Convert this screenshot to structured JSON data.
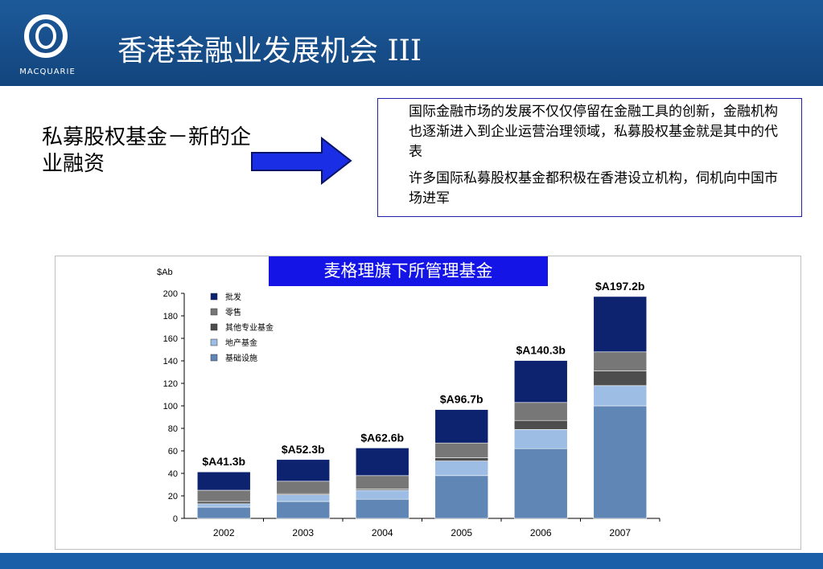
{
  "header": {
    "title": "香港金融业发展机会 III",
    "logo_text": "MACQUARIE",
    "logo_icon": "macquarie-ring-icon"
  },
  "left_heading": "私募股权基金－新的企业融资",
  "note": {
    "paragraphs": [
      "国际金融市场的发展不仅仅停留在金融工具的创新，金融机构也逐渐进入到企业运营治理领域，私募股权基金就是其中的代表",
      "许多国际私募股权基金都积极在香港设立机构，伺机向中国市场进军"
    ]
  },
  "colors": {
    "header": "#174e8a",
    "footer": "#1a5fa8",
    "title_box": "#1414e6"
  },
  "chart_data": {
    "type": "bar",
    "stacked": true,
    "title": "麦格理旗下所管理基金",
    "ylabel": "$Ab",
    "ylim": [
      0,
      200
    ],
    "yticks": [
      0,
      20,
      40,
      60,
      80,
      100,
      120,
      140,
      160,
      180,
      200
    ],
    "categories": [
      "2002",
      "2003",
      "2004",
      "2005",
      "2006",
      "2007"
    ],
    "totals_labels": [
      "$A41.3b",
      "$A52.3b",
      "$A62.6b",
      "$A96.7b",
      "$A140.3b",
      "$A197.2b"
    ],
    "legend_position": "top-left",
    "series": [
      {
        "name": "基础设施",
        "color": "#5f86b5",
        "values": [
          10,
          15,
          17,
          38,
          62,
          100
        ]
      },
      {
        "name": "地产基金",
        "color": "#9dbde4",
        "values": [
          3,
          6,
          8,
          13,
          17,
          18
        ]
      },
      {
        "name": "其他专业基金",
        "color": "#4d4d4d",
        "values": [
          2,
          1,
          1,
          3,
          8,
          13
        ]
      },
      {
        "name": "零售",
        "color": "#777777",
        "values": [
          10,
          11,
          12,
          13,
          16,
          17
        ]
      },
      {
        "name": "批发",
        "color": "#0d2370",
        "values": [
          16.3,
          19.3,
          24.6,
          29.7,
          37.3,
          49.2
        ]
      }
    ]
  }
}
